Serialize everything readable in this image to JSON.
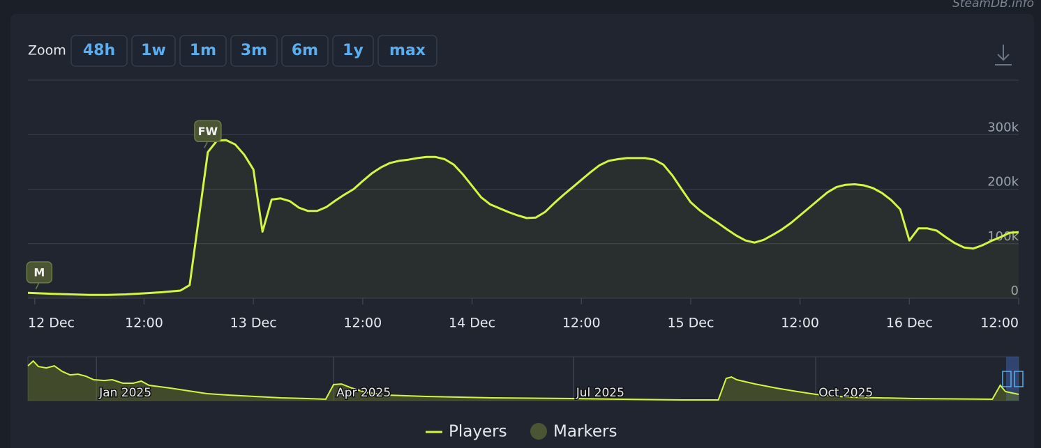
{
  "watermark": "SteamDB.info",
  "zoom": {
    "label": "Zoom",
    "buttons": [
      "48h",
      "1w",
      "1m",
      "3m",
      "6m",
      "1y",
      "max"
    ]
  },
  "chart_data": {
    "type": "line",
    "x": [
      -0.75,
      2,
      4,
      6,
      8,
      10,
      12,
      14,
      16,
      17,
      19,
      20,
      21,
      22,
      23,
      24,
      25,
      26,
      27,
      28,
      29,
      30,
      31,
      32,
      33,
      34,
      35,
      36,
      37,
      38,
      39,
      40,
      41,
      42,
      43,
      44,
      45,
      46,
      47,
      48,
      49,
      50,
      51,
      52,
      53,
      54,
      55,
      56,
      57,
      58,
      59,
      60,
      61,
      62,
      63,
      64,
      65,
      66,
      67,
      68,
      69,
      70,
      71,
      72,
      73,
      74,
      75,
      76,
      77,
      78,
      79,
      80,
      81,
      82,
      83,
      84,
      85,
      86,
      87,
      88,
      89,
      90,
      91,
      92,
      93,
      94,
      95,
      96,
      97,
      98,
      99,
      100,
      101,
      102,
      103,
      104,
      105,
      106,
      107,
      108
    ],
    "series": [
      {
        "name": "Players",
        "color": "#d4f542",
        "values": [
          10000,
          8000,
          7000,
          6000,
          6000,
          7000,
          9000,
          11000,
          14000,
          24000,
          268000,
          289000,
          290000,
          282000,
          263000,
          236000,
          122000,
          181000,
          183000,
          178000,
          166000,
          160000,
          160000,
          167000,
          179000,
          190000,
          200000,
          215000,
          229000,
          240000,
          248000,
          252000,
          254000,
          257000,
          259000,
          259000,
          255000,
          245000,
          227000,
          206000,
          185000,
          172000,
          165000,
          158000,
          152000,
          147000,
          148000,
          158000,
          174000,
          189000,
          203000,
          217000,
          231000,
          244000,
          252000,
          255000,
          257000,
          257000,
          257000,
          254000,
          245000,
          225000,
          200000,
          176000,
          161000,
          149000,
          138000,
          126000,
          115000,
          106000,
          102000,
          107000,
          116000,
          126000,
          138000,
          152000,
          166000,
          180000,
          194000,
          204000,
          208000,
          209000,
          207000,
          202000,
          193000,
          180000,
          163000,
          106000,
          128000,
          128000,
          124000,
          112000,
          101000,
          93000,
          91000,
          97000,
          105000,
          112000,
          120000,
          121000
        ]
      }
    ],
    "markers": {
      "name": "Markers",
      "color": "#4b5533",
      "x": [
        0.5,
        19
      ],
      "labels": [
        "M",
        "FW"
      ]
    },
    "xlim": [
      -0.75,
      108
    ],
    "xticks": [
      {
        "value": 0,
        "label": "12 Dec"
      },
      {
        "value": 12,
        "label": "12:00"
      },
      {
        "value": 24,
        "label": "13 Dec"
      },
      {
        "value": 36,
        "label": "12:00"
      },
      {
        "value": 48,
        "label": "14 Dec"
      },
      {
        "value": 60,
        "label": "12:00"
      },
      {
        "value": 72,
        "label": "15 Dec"
      },
      {
        "value": 84,
        "label": "12:00"
      },
      {
        "value": 96,
        "label": "16 Dec"
      },
      {
        "value": 108,
        "label": "12:00"
      }
    ],
    "ylim": [
      0,
      400000
    ],
    "yticks": [
      0,
      {
        "value": 100000,
        "label": "100k"
      },
      {
        "value": 200000,
        "label": "200k"
      },
      {
        "value": 300000,
        "label": "300k"
      }
    ],
    "grid": true,
    "navigator": {
      "x": [
        -26,
        -24,
        -22,
        -19,
        -16,
        -13,
        -10,
        -7,
        -4,
        -1,
        3,
        6,
        10,
        14,
        17,
        20,
        24,
        28,
        35,
        42,
        50,
        60,
        70,
        80,
        87,
        90,
        93,
        97,
        102,
        110,
        125,
        150,
        180,
        200,
        222,
        236,
        239,
        241,
        243,
        250,
        258,
        266,
        273,
        285,
        310,
        340,
        343,
        345,
        350
      ],
      "values": [
        580000,
        661000,
        568000,
        545000,
        580000,
        487000,
        429000,
        441000,
        406000,
        348000,
        336000,
        348000,
        290000,
        290000,
        325000,
        255000,
        232000,
        209000,
        162000,
        116000,
        93000,
        70000,
        46000,
        35000,
        23000,
        267000,
        278000,
        209000,
        139000,
        93000,
        70000,
        46000,
        35000,
        23000,
        12000,
        12000,
        371000,
        394000,
        348000,
        278000,
        209000,
        151000,
        104000,
        58000,
        35000,
        23000,
        255000,
        151000,
        104000
      ],
      "xlim": [
        -26,
        350
      ],
      "ylim": [
        0,
        720000
      ],
      "xticks": [
        {
          "value": 0,
          "label": "Jan 2025"
        },
        {
          "value": 90,
          "label": "Apr 2025"
        },
        {
          "value": 181,
          "label": "Jul 2025"
        },
        {
          "value": 273,
          "label": "Oct 2025"
        }
      ]
    }
  }
}
